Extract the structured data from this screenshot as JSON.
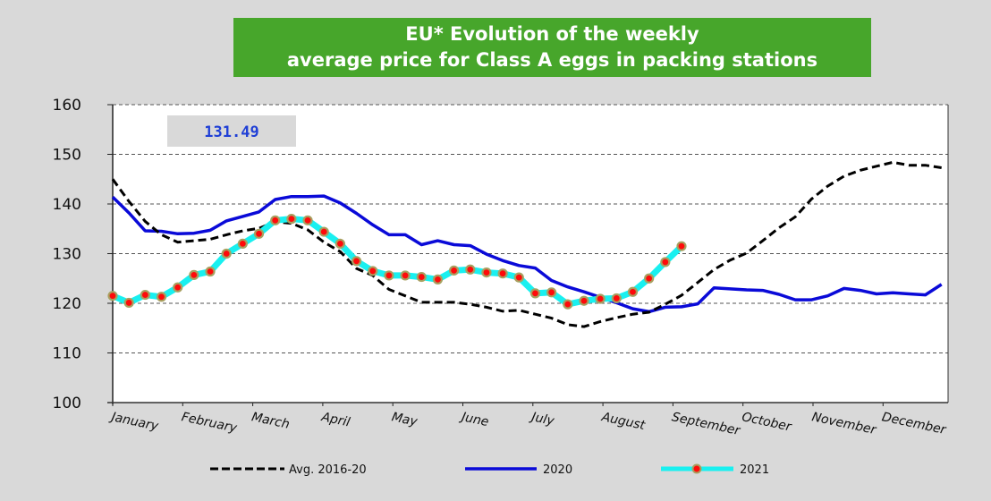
{
  "chart_data": {
    "type": "line",
    "title": [
      "EU* Evolution of the weekly",
      "average price for Class A eggs in packing stations"
    ],
    "xlabel": "",
    "ylabel": "",
    "ylim": [
      100,
      160
    ],
    "yticks": [
      100,
      110,
      120,
      130,
      140,
      150,
      160
    ],
    "x_unit": "week",
    "weeks_total": 52,
    "xtick_labels": [
      "January",
      "February",
      "March",
      "April",
      "May",
      "June",
      "July",
      "August",
      "September",
      "October",
      "November",
      "December"
    ],
    "grid": true,
    "legend_position": "bottom",
    "annotation": "131.49",
    "colors": {
      "avg": "#000000",
      "y2020": "#0a0ad8",
      "y2021_line": "#19f0f0",
      "y2021_marker": "#ff0a0a",
      "y2021_marker_edge": "#a8a060",
      "title_bg": "#47a62b",
      "annotation_bg": "#d9d9d9",
      "annotation_text": "#1f3fd6"
    },
    "series": [
      {
        "name": "Avg. 2016-20",
        "style": "dashed",
        "values": [
          145,
          140.5,
          136.5,
          133.8,
          132.3,
          132.6,
          132.9,
          133.8,
          134.6,
          135.1,
          136.4,
          136.1,
          134.8,
          132.3,
          130.4,
          127,
          125.6,
          122.8,
          121.5,
          120.2,
          120.2,
          120.2,
          119.8,
          119.2,
          118.4,
          118.6,
          117.8,
          117,
          115.7,
          115.3,
          116.3,
          117.1,
          117.8,
          118.2,
          119.8,
          121.6,
          124.2,
          126.8,
          128.7,
          130.1,
          132.6,
          135.2,
          137.4,
          141,
          143.6,
          145.6,
          146.8,
          147.6,
          148.4,
          147.8,
          147.8,
          147.3
        ]
      },
      {
        "name": "2020",
        "style": "solid",
        "values": [
          141.4,
          138.2,
          134.6,
          134.5,
          134,
          134.1,
          134.7,
          136.6,
          137.5,
          138.4,
          140.9,
          141.5,
          141.5,
          141.6,
          140.2,
          138.1,
          135.8,
          133.8,
          133.8,
          131.8,
          132.6,
          131.8,
          131.6,
          129.9,
          128.6,
          127.6,
          127.1,
          124.6,
          123.3,
          122.3,
          121.2,
          120.1,
          118.9,
          118.3,
          119.2,
          119.3,
          119.9,
          123.1,
          122.9,
          122.7,
          122.6,
          121.8,
          120.7,
          120.7,
          121.5,
          123,
          122.6,
          121.9,
          122.1,
          121.9,
          121.7,
          123.8
        ]
      },
      {
        "name": "2021",
        "style": "solid-markers",
        "values": [
          121.5,
          120.1,
          121.7,
          121.3,
          123.2,
          125.7,
          126.4,
          130,
          132,
          134,
          136.7,
          137,
          136.7,
          134.4,
          132,
          128.5,
          126.5,
          125.6,
          125.6,
          125.3,
          124.8,
          126.6,
          126.8,
          126.2,
          126,
          125.2,
          122,
          122.2,
          119.8,
          120.5,
          120.9,
          121,
          122.3,
          125,
          128.3,
          131.5
        ]
      }
    ]
  },
  "legend": [
    {
      "label": "Avg. 2016-20"
    },
    {
      "label": "2020"
    },
    {
      "label": "2021"
    }
  ]
}
